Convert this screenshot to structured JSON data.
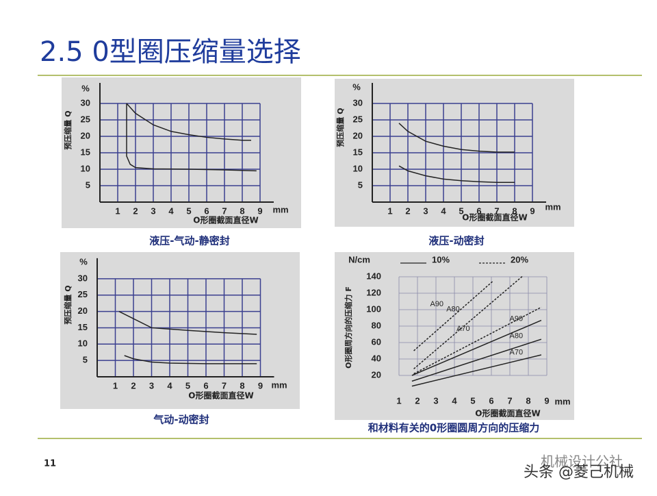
{
  "title": "2.5 0型圈压缩量选择",
  "page_number": "11",
  "watermark": [
    "机械设计公社",
    "头条 @菱己机械"
  ],
  "chart_data": [
    {
      "type": "line",
      "title": "液压-气动-静密封",
      "y_unit": "%",
      "ylabel": "预压缩量 Q",
      "x_unit": "mm",
      "xlabel": "O形圈截面直径W",
      "xlim": [
        0,
        9
      ],
      "ylim": [
        0,
        30
      ],
      "xticks": [
        1,
        2,
        3,
        4,
        5,
        6,
        7,
        8,
        9
      ],
      "yticks": [
        5,
        10,
        15,
        20,
        25,
        30
      ],
      "grid": true,
      "series": [
        {
          "color": "#222222",
          "x": [
            1.5,
            2,
            3,
            4,
            5,
            6,
            7,
            8,
            8.5
          ],
          "values": [
            30,
            27,
            23.5,
            21.5,
            20.5,
            19.7,
            19.2,
            18.8,
            18.8
          ]
        },
        {
          "color": "#222222",
          "x": [
            1.5,
            1.5,
            1.7,
            2,
            3,
            5,
            7,
            8.8
          ],
          "values": [
            30,
            14,
            11.5,
            10.5,
            10.1,
            10,
            9.8,
            9.5
          ]
        }
      ]
    },
    {
      "type": "line",
      "title": "液压-动密封",
      "y_unit": "%",
      "ylabel": "预压缩量 Q",
      "x_unit": "mm",
      "xlabel": "O形圈截面直径W",
      "xlim": [
        0,
        9
      ],
      "ylim": [
        0,
        30
      ],
      "xticks": [
        1,
        2,
        3,
        4,
        5,
        6,
        7,
        8,
        9
      ],
      "yticks": [
        5,
        10,
        15,
        20,
        25,
        30
      ],
      "grid": true,
      "series": [
        {
          "color": "#222222",
          "x": [
            1.5,
            2,
            3,
            4,
            5,
            6,
            7,
            8
          ],
          "values": [
            24,
            21.5,
            18.5,
            17,
            16,
            15.5,
            15.2,
            15.2
          ]
        },
        {
          "color": "#222222",
          "x": [
            1.5,
            2,
            3,
            4,
            5,
            6,
            7,
            8
          ],
          "values": [
            11,
            9.5,
            8,
            7,
            6.5,
            6.2,
            6,
            6
          ]
        }
      ]
    },
    {
      "type": "line",
      "title": "气动-动密封",
      "y_unit": "%",
      "ylabel": "预压缩量 Q",
      "x_unit": "mm",
      "xlabel": "O形圈截面直径W",
      "xlim": [
        0,
        9
      ],
      "ylim": [
        0,
        30
      ],
      "xticks": [
        1,
        2,
        3,
        4,
        5,
        6,
        7,
        8,
        9
      ],
      "yticks": [
        5,
        10,
        15,
        20,
        25,
        30
      ],
      "grid": true,
      "series": [
        {
          "color": "#222222",
          "x": [
            1.2,
            3,
            5,
            7,
            8.8
          ],
          "values": [
            20,
            15,
            14.2,
            13.5,
            13
          ]
        },
        {
          "color": "#222222",
          "x": [
            1.5,
            2,
            3,
            4,
            6,
            8.8
          ],
          "values": [
            6.5,
            5.5,
            4.5,
            4.2,
            4,
            4
          ]
        }
      ]
    },
    {
      "type": "line",
      "title": "和材料有关的0形圈圆周方向的压缩力",
      "y_unit": "N/cm",
      "ylabel": "O形圈周方向的压缩力 F",
      "x_unit": "mm",
      "xlabel": "O形圈截面直径W",
      "xlim": [
        0,
        9
      ],
      "ylim": [
        0,
        140
      ],
      "xticks": [
        1,
        2,
        3,
        4,
        5,
        6,
        7,
        8,
        9
      ],
      "yticks": [
        20,
        40,
        60,
        80,
        100,
        120,
        140
      ],
      "grid": true,
      "legend": [
        {
          "label": "10%",
          "style": "solid"
        },
        {
          "label": "20%",
          "style": "dashed"
        }
      ],
      "series": [
        {
          "name": "A90",
          "style": "dashed",
          "color": "#222222",
          "x": [
            1.8,
            6.1
          ],
          "values": [
            50,
            135
          ]
        },
        {
          "name": "A80",
          "style": "dashed",
          "color": "#222222",
          "x": [
            1.8,
            7.7
          ],
          "values": [
            28,
            141
          ]
        },
        {
          "name": "A70",
          "style": "dashed",
          "color": "#222222",
          "x": [
            1.8,
            8.7
          ],
          "values": [
            22,
            103
          ]
        },
        {
          "name": "A90",
          "style": "solid",
          "color": "#222222",
          "x": [
            1.7,
            8.7
          ],
          "values": [
            20,
            87
          ]
        },
        {
          "name": "A80",
          "style": "solid",
          "color": "#222222",
          "x": [
            1.7,
            8.7
          ],
          "values": [
            13,
            64
          ]
        },
        {
          "name": "A70",
          "style": "solid",
          "color": "#222222",
          "x": [
            1.7,
            8.7
          ],
          "values": [
            7,
            45
          ]
        }
      ]
    }
  ]
}
